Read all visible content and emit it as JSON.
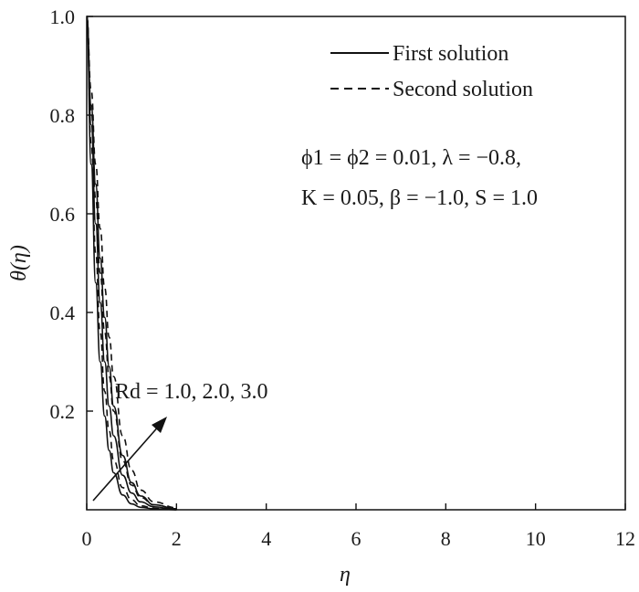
{
  "chart_data": {
    "type": "line",
    "xlabel": "η",
    "ylabel": "θ(η)",
    "xlim": [
      0,
      12
    ],
    "ylim": [
      0,
      1.0
    ],
    "x_ticks": [
      "0",
      "2",
      "4",
      "6",
      "8",
      "10",
      "12"
    ],
    "y_ticks": [
      "0.2",
      "0.4",
      "0.6",
      "0.8",
      "1.0"
    ],
    "legend": {
      "placement": "top-right",
      "entries": [
        {
          "label": "First solution",
          "style": "solid"
        },
        {
          "label": "Second solution",
          "style": "dashed"
        }
      ]
    },
    "parameter_text": {
      "line1": "ϕ1 = ϕ2 = 0.01, λ = −0.8,",
      "line2": "K = 0.05, β = −1.0, S = 1.0"
    },
    "arrow_annotation": "Rd = 1.0, 2.0, 3.0",
    "series": [
      {
        "group": "First solution",
        "Rd": 1.0,
        "x": [
          0,
          0.1,
          0.2,
          0.3,
          0.4,
          0.5,
          0.6,
          0.8,
          1.0,
          1.2,
          1.5,
          2.0
        ],
        "y": [
          1.0,
          0.7,
          0.46,
          0.3,
          0.19,
          0.12,
          0.075,
          0.03,
          0.012,
          0.005,
          0.002,
          0.0
        ]
      },
      {
        "group": "First solution",
        "Rd": 2.0,
        "x": [
          0,
          0.1,
          0.2,
          0.3,
          0.4,
          0.5,
          0.6,
          0.8,
          1.0,
          1.2,
          1.5,
          2.0
        ],
        "y": [
          1.0,
          0.78,
          0.58,
          0.42,
          0.3,
          0.21,
          0.15,
          0.07,
          0.034,
          0.016,
          0.006,
          0.0
        ]
      },
      {
        "group": "First solution",
        "Rd": 3.0,
        "x": [
          0,
          0.1,
          0.2,
          0.3,
          0.4,
          0.5,
          0.6,
          0.8,
          1.0,
          1.2,
          1.5,
          2.0
        ],
        "y": [
          1.0,
          0.82,
          0.66,
          0.51,
          0.39,
          0.29,
          0.21,
          0.11,
          0.055,
          0.028,
          0.01,
          0.002
        ]
      },
      {
        "group": "Second solution",
        "Rd": 1.0,
        "x": [
          0,
          0.1,
          0.2,
          0.3,
          0.4,
          0.5,
          0.6,
          0.8,
          1.0,
          1.2,
          1.5,
          2.0
        ],
        "y": [
          1.0,
          0.74,
          0.52,
          0.36,
          0.24,
          0.16,
          0.1,
          0.045,
          0.02,
          0.008,
          0.003,
          0.0
        ]
      },
      {
        "group": "Second solution",
        "Rd": 2.0,
        "x": [
          0,
          0.1,
          0.2,
          0.3,
          0.4,
          0.5,
          0.6,
          0.8,
          1.0,
          1.2,
          1.5,
          2.0
        ],
        "y": [
          1.0,
          0.81,
          0.63,
          0.48,
          0.36,
          0.27,
          0.2,
          0.1,
          0.05,
          0.025,
          0.01,
          0.002
        ]
      },
      {
        "group": "Second solution",
        "Rd": 3.0,
        "x": [
          0,
          0.1,
          0.2,
          0.3,
          0.4,
          0.5,
          0.6,
          0.8,
          1.0,
          1.2,
          1.5,
          2.0
        ],
        "y": [
          1.0,
          0.85,
          0.7,
          0.57,
          0.45,
          0.35,
          0.27,
          0.15,
          0.08,
          0.04,
          0.016,
          0.004
        ]
      }
    ]
  }
}
